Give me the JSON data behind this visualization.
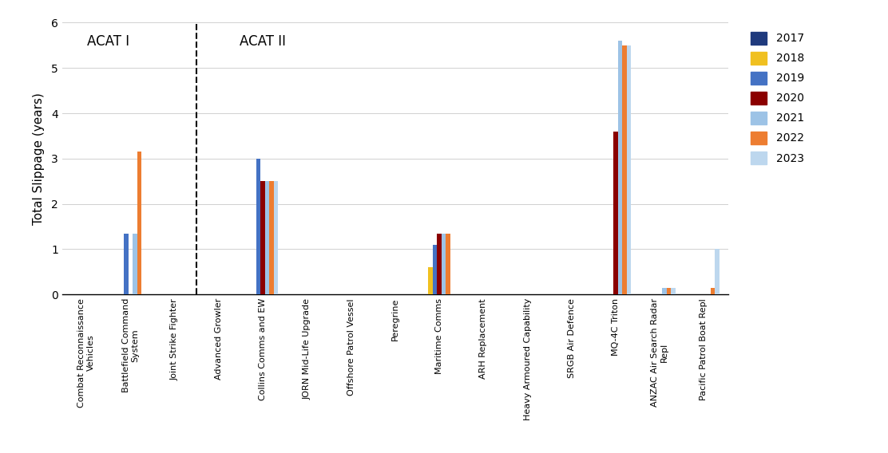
{
  "categories": [
    "Combat Reconnaissance\nVehicles",
    "Battlefield Command\nSystem",
    "Joint Strike Fighter",
    "Advanced Growler",
    "Collins Comms and EW",
    "JORN Mid-Life Upgrade",
    "Offshore Patrol Vessel",
    "Peregrine",
    "Maritime Comms",
    "ARH Replacement",
    "Heavy Armoured Capability",
    "SRGB Air Defence",
    "MQ-4C Triton",
    "ANZAC Air Search Radar\nRepl",
    "Pacific Patrol Boat Repl"
  ],
  "series": {
    "2017": [
      0,
      0,
      0,
      0,
      0,
      0,
      0,
      0,
      0,
      0,
      0,
      0,
      0,
      0,
      0
    ],
    "2018": [
      0,
      0,
      0,
      0,
      0,
      0,
      0,
      0,
      0.6,
      0,
      0,
      0,
      0,
      0,
      0
    ],
    "2019": [
      0,
      1.35,
      0,
      0,
      3.0,
      0,
      0,
      0,
      1.1,
      0,
      0,
      0,
      0,
      0,
      0
    ],
    "2020": [
      0,
      0,
      0,
      0,
      2.5,
      0,
      0,
      0,
      1.35,
      0,
      0,
      0,
      3.6,
      0,
      0
    ],
    "2021": [
      0,
      1.35,
      0,
      0,
      2.5,
      0,
      0,
      0,
      1.35,
      0,
      0,
      0,
      5.6,
      0.15,
      0
    ],
    "2022": [
      0,
      3.15,
      0,
      0,
      2.5,
      0,
      0,
      0,
      1.35,
      0,
      0,
      0,
      5.5,
      0.15,
      0.15
    ],
    "2023": [
      0,
      0,
      0,
      0,
      2.5,
      0,
      0,
      0,
      0,
      0,
      0,
      0,
      5.5,
      0.15,
      1.0
    ]
  },
  "colors": {
    "2017": "#1f3a7d",
    "2018": "#f0c020",
    "2019": "#4472c4",
    "2020": "#8b0000",
    "2021": "#9dc3e6",
    "2022": "#ed7d31",
    "2023": "#bdd7ee"
  },
  "years": [
    "2017",
    "2018",
    "2019",
    "2020",
    "2021",
    "2022",
    "2023"
  ],
  "ylabel": "Total Slippage (years)",
  "ylim": [
    0,
    6
  ],
  "yticks": [
    0,
    1,
    2,
    3,
    4,
    5,
    6
  ],
  "acat1_label": "ACAT I",
  "acat2_label": "ACAT II",
  "bar_width": 0.1,
  "figsize": [
    11.12,
    5.68
  ],
  "dpi": 100
}
